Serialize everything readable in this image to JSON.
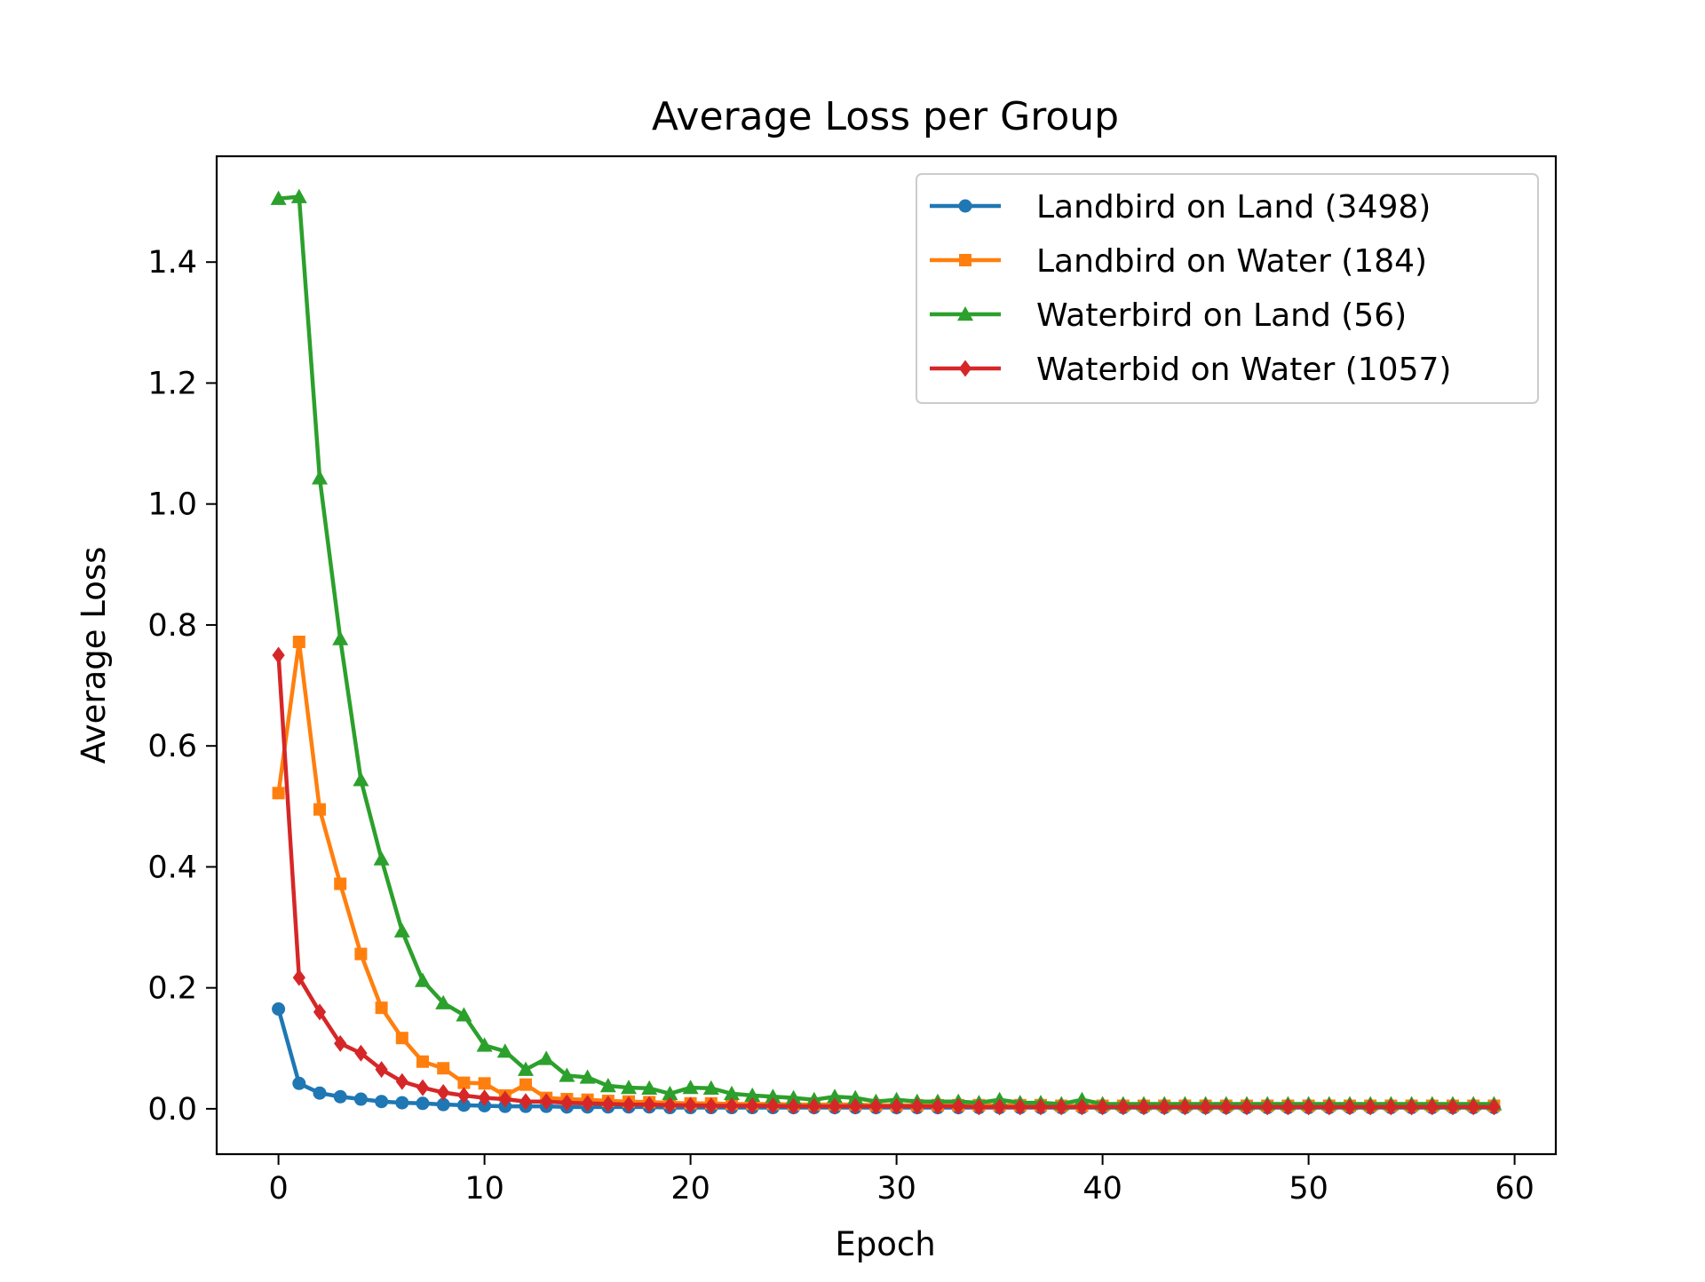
{
  "chart_data": {
    "type": "line",
    "title": "Average Loss per Group",
    "xlabel": "Epoch",
    "ylabel": "Average Loss",
    "xlim": [
      -3,
      62
    ],
    "ylim": [
      -0.075,
      1.575
    ],
    "xticks": [
      0,
      10,
      20,
      30,
      40,
      50,
      60
    ],
    "yticks": [
      0.0,
      0.2,
      0.4,
      0.6,
      0.8,
      1.0,
      1.2,
      1.4
    ],
    "grid": false,
    "legend_position": "top-right",
    "x": [
      0,
      1,
      2,
      3,
      4,
      5,
      6,
      7,
      8,
      9,
      10,
      11,
      12,
      13,
      14,
      15,
      16,
      17,
      18,
      19,
      20,
      21,
      22,
      23,
      24,
      25,
      26,
      27,
      28,
      29,
      30,
      31,
      32,
      33,
      34,
      35,
      36,
      37,
      38,
      39,
      40,
      41,
      42,
      43,
      44,
      45,
      46,
      47,
      48,
      49,
      50,
      51,
      52,
      53,
      54,
      55,
      56,
      57,
      58,
      59
    ],
    "series": [
      {
        "name": "Landbird on Land (3498)",
        "color": "#1f77b4",
        "marker": "circle",
        "values": [
          0.165,
          0.042,
          0.026,
          0.02,
          0.016,
          0.012,
          0.01,
          0.009,
          0.007,
          0.006,
          0.005,
          0.004,
          0.004,
          0.004,
          0.003,
          0.003,
          0.003,
          0.003,
          0.003,
          0.002,
          0.002,
          0.002,
          0.002,
          0.002,
          0.002,
          0.002,
          0.002,
          0.002,
          0.002,
          0.002,
          0.002,
          0.002,
          0.002,
          0.002,
          0.002,
          0.002,
          0.002,
          0.002,
          0.002,
          0.002,
          0.002,
          0.002,
          0.002,
          0.002,
          0.002,
          0.002,
          0.002,
          0.002,
          0.002,
          0.002,
          0.002,
          0.002,
          0.002,
          0.002,
          0.002,
          0.002,
          0.002,
          0.002,
          0.002,
          0.002
        ]
      },
      {
        "name": "Landbird on Water (184)",
        "color": "#ff7f0e",
        "marker": "square",
        "values": [
          0.522,
          0.772,
          0.495,
          0.372,
          0.256,
          0.167,
          0.117,
          0.078,
          0.067,
          0.043,
          0.042,
          0.022,
          0.04,
          0.018,
          0.016,
          0.015,
          0.013,
          0.012,
          0.011,
          0.01,
          0.009,
          0.009,
          0.008,
          0.008,
          0.008,
          0.007,
          0.007,
          0.007,
          0.007,
          0.006,
          0.006,
          0.006,
          0.006,
          0.006,
          0.006,
          0.006,
          0.006,
          0.006,
          0.005,
          0.005,
          0.005,
          0.005,
          0.005,
          0.005,
          0.005,
          0.005,
          0.005,
          0.005,
          0.005,
          0.005,
          0.005,
          0.005,
          0.005,
          0.005,
          0.005,
          0.005,
          0.005,
          0.005,
          0.005,
          0.005
        ]
      },
      {
        "name": "Waterbird on Land (56)",
        "color": "#2ca02c",
        "marker": "triangle",
        "values": [
          1.505,
          1.508,
          1.043,
          0.777,
          0.544,
          0.413,
          0.294,
          0.212,
          0.175,
          0.155,
          0.105,
          0.095,
          0.065,
          0.083,
          0.055,
          0.052,
          0.038,
          0.035,
          0.034,
          0.025,
          0.035,
          0.034,
          0.025,
          0.022,
          0.02,
          0.018,
          0.015,
          0.02,
          0.018,
          0.012,
          0.015,
          0.012,
          0.012,
          0.012,
          0.01,
          0.015,
          0.01,
          0.01,
          0.008,
          0.015,
          0.008,
          0.008,
          0.008,
          0.008,
          0.008,
          0.008,
          0.008,
          0.008,
          0.008,
          0.008,
          0.008,
          0.008,
          0.008,
          0.008,
          0.008,
          0.008,
          0.008,
          0.008,
          0.008,
          0.008
        ]
      },
      {
        "name": "Waterbid on Water (1057)",
        "color": "#d62728",
        "marker": "diamond",
        "values": [
          0.75,
          0.217,
          0.16,
          0.108,
          0.092,
          0.065,
          0.045,
          0.035,
          0.027,
          0.022,
          0.018,
          0.016,
          0.012,
          0.012,
          0.01,
          0.009,
          0.008,
          0.007,
          0.007,
          0.006,
          0.006,
          0.005,
          0.005,
          0.005,
          0.005,
          0.004,
          0.004,
          0.004,
          0.004,
          0.004,
          0.004,
          0.004,
          0.004,
          0.004,
          0.003,
          0.003,
          0.003,
          0.003,
          0.003,
          0.003,
          0.003,
          0.003,
          0.003,
          0.003,
          0.003,
          0.003,
          0.003,
          0.003,
          0.003,
          0.003,
          0.003,
          0.003,
          0.003,
          0.003,
          0.003,
          0.003,
          0.003,
          0.003,
          0.003,
          0.003
        ]
      }
    ]
  }
}
